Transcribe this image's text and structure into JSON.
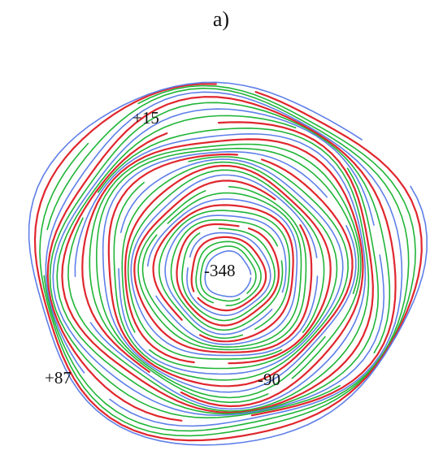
{
  "panel_label": "a)",
  "annotations": {
    "a": "+15",
    "b": "+87",
    "c": "-348",
    "d": "-90"
  },
  "colors": {
    "blue": "#5f7fe8",
    "green": "#21b538",
    "red": "#e0262e",
    "magenta": "#9a3dc8"
  },
  "contour_colors": [
    "blue",
    "green",
    "green",
    "red",
    "blue",
    "green",
    "red",
    "green",
    "blue",
    "green",
    "red",
    "blue",
    "green",
    "green",
    "red",
    "blue",
    "green",
    "red",
    "green",
    "blue",
    "green",
    "red",
    "blue",
    "green",
    "green",
    "red",
    "blue",
    "green",
    "red",
    "green",
    "blue",
    "green",
    "red",
    "blue",
    "green",
    "green",
    "red",
    "blue"
  ]
}
